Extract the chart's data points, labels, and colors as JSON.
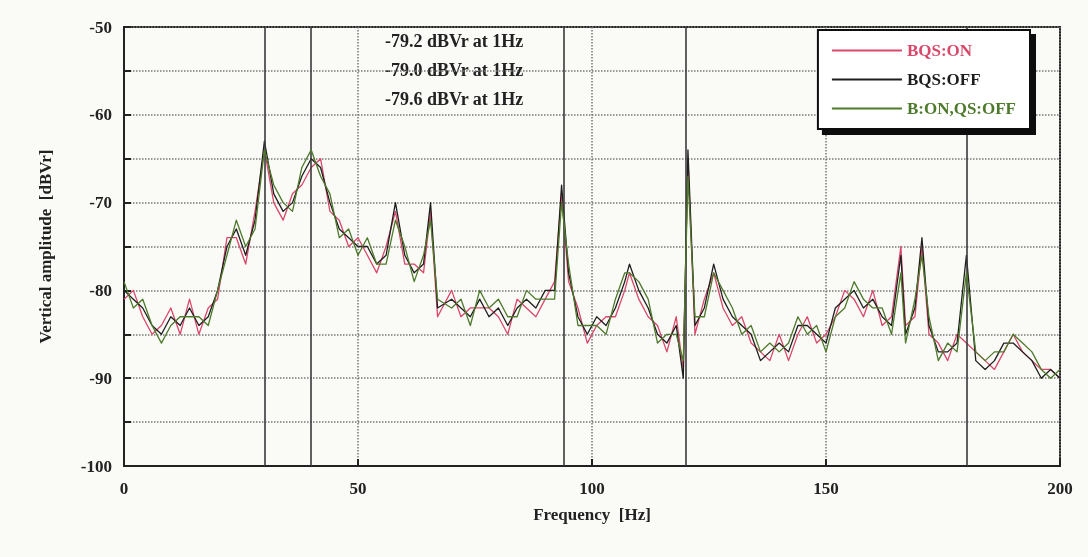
{
  "chart_data": {
    "type": "line",
    "xlabel": "Frequency  [Hz]",
    "ylabel": "Vertical amplitude  [dBVr]",
    "x": [
      0,
      2,
      4,
      6,
      8,
      10,
      12,
      14,
      16,
      18,
      20,
      22,
      24,
      26,
      28,
      30,
      32,
      34,
      36,
      38,
      40,
      42,
      44,
      46,
      48,
      50,
      52,
      54,
      56,
      58,
      60,
      62,
      64,
      65.5,
      67,
      70,
      72,
      74,
      76,
      78,
      80,
      82,
      84,
      86,
      88,
      90,
      92,
      93.5,
      95,
      97,
      99,
      101,
      103,
      105,
      107,
      108,
      110,
      112,
      114,
      116,
      118,
      119.5,
      120.5,
      122,
      124,
      126,
      128,
      130,
      132,
      134,
      136,
      138,
      140,
      142,
      144,
      146,
      148,
      150,
      152,
      154,
      156,
      158,
      160,
      162,
      164,
      166,
      167,
      169,
      170.5,
      172,
      174,
      176,
      178,
      180,
      182,
      184,
      186,
      188,
      190,
      192,
      194,
      196,
      198,
      200
    ],
    "series": [
      {
        "name": "BQS:ON",
        "color": "#d9486a",
        "values": [
          -81,
          -80,
          -83,
          -85,
          -84,
          -82,
          -85,
          -81,
          -85,
          -82,
          -81,
          -74,
          -74,
          -77,
          -71,
          -64,
          -70,
          -72,
          -69,
          -68,
          -66,
          -65,
          -71,
          -72,
          -75,
          -74,
          -76,
          -78,
          -75,
          -71,
          -77,
          -77,
          -78,
          -71,
          -83,
          -80,
          -83,
          -82,
          -82,
          -82,
          -83,
          -85,
          -81,
          -82,
          -83,
          -81,
          -79,
          -69,
          -79,
          -82,
          -86,
          -84,
          -83,
          -83,
          -80,
          -78,
          -81,
          -83,
          -84,
          -87,
          -83,
          -89,
          -65,
          -85,
          -81,
          -78,
          -82,
          -84,
          -83,
          -86,
          -87,
          -88,
          -85,
          -88,
          -85,
          -83,
          -86,
          -85,
          -83,
          -80,
          -81,
          -83,
          -80,
          -84,
          -83,
          -75,
          -84,
          -83,
          -75,
          -85,
          -86,
          -88,
          -85,
          -86,
          -87,
          -88,
          -89,
          -87,
          -85,
          -87,
          -88,
          -89,
          -89,
          -90
        ]
      },
      {
        "name": "BQS:OFF",
        "color": "#1e1e1e",
        "values": [
          -80,
          -81,
          -82,
          -84,
          -85,
          -83,
          -84,
          -82,
          -84,
          -83,
          -80,
          -75,
          -73,
          -76,
          -72,
          -63,
          -69,
          -71,
          -70,
          -67,
          -65,
          -66,
          -70,
          -73,
          -74,
          -75,
          -75,
          -77,
          -76,
          -70,
          -76,
          -78,
          -77,
          -70,
          -82,
          -81,
          -82,
          -83,
          -81,
          -83,
          -82,
          -84,
          -82,
          -81,
          -82,
          -80,
          -80,
          -68,
          -78,
          -83,
          -85,
          -83,
          -84,
          -82,
          -79,
          -77,
          -80,
          -82,
          -85,
          -86,
          -84,
          -90,
          -64,
          -84,
          -82,
          -77,
          -81,
          -83,
          -84,
          -85,
          -88,
          -87,
          -86,
          -87,
          -84,
          -84,
          -85,
          -86,
          -82,
          -81,
          -80,
          -82,
          -81,
          -83,
          -84,
          -76,
          -85,
          -82,
          -74,
          -84,
          -87,
          -87,
          -86,
          -76,
          -88,
          -89,
          -88,
          -86,
          -86,
          -87,
          -88,
          -90,
          -89,
          -90
        ]
      },
      {
        "name": "B:ON,QS:OFF",
        "color": "#4e7a2c",
        "values": [
          -79,
          -82,
          -81,
          -84,
          -86,
          -84,
          -83,
          -83,
          -83,
          -84,
          -80,
          -76,
          -72,
          -75,
          -73,
          -64,
          -68,
          -70,
          -71,
          -66,
          -64,
          -67,
          -69,
          -74,
          -73,
          -76,
          -74,
          -77,
          -77,
          -72,
          -75,
          -79,
          -76,
          -72,
          -81,
          -82,
          -81,
          -84,
          -80,
          -82,
          -81,
          -83,
          -83,
          -80,
          -81,
          -81,
          -81,
          -70,
          -77,
          -84,
          -84,
          -84,
          -85,
          -81,
          -78,
          -78,
          -79,
          -81,
          -86,
          -85,
          -85,
          -88,
          -67,
          -83,
          -83,
          -78,
          -80,
          -82,
          -85,
          -84,
          -87,
          -86,
          -87,
          -86,
          -83,
          -85,
          -84,
          -87,
          -83,
          -82,
          -79,
          -81,
          -82,
          -82,
          -85,
          -78,
          -86,
          -81,
          -76,
          -83,
          -88,
          -86,
          -87,
          -78,
          -87,
          -88,
          -87,
          -87,
          -85,
          -86,
          -87,
          -89,
          -90,
          -89
        ]
      }
    ],
    "xlim": [
      0,
      200
    ],
    "xticks": [
      0,
      50,
      100,
      150,
      200
    ],
    "ylim": [
      -100,
      -50
    ],
    "yticks": [
      -100,
      {
        "value": -95,
        "label": null
      },
      -90,
      {
        "value": -85,
        "label": null
      },
      -80,
      {
        "value": -75,
        "label": null
      },
      -70,
      {
        "value": -65,
        "label": null
      },
      -60,
      {
        "value": -55,
        "label": null
      },
      -50
    ],
    "grid": true,
    "legend": "top right",
    "marker": "none",
    "line_style": "solid",
    "ref_lines": [
      {
        "axis": "x",
        "value": 30,
        "label": null
      },
      {
        "axis": "x",
        "value": 40,
        "label": null
      },
      {
        "axis": "x",
        "value": 94,
        "label": null
      },
      {
        "axis": "x",
        "value": 120,
        "label": null
      },
      {
        "axis": "x",
        "value": 180,
        "label": null
      }
    ],
    "annotations": [
      "-79.2 dBVr at 1Hz",
      "-79.0 dBVr at 1Hz",
      "-79.6 dBVr at 1Hz"
    ]
  }
}
